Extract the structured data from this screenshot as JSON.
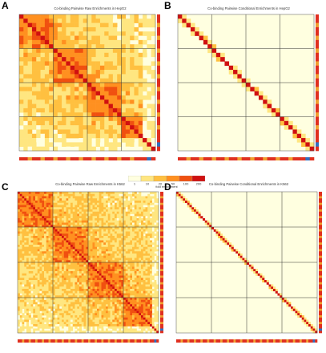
{
  "panels": [
    {
      "id": "panel-a",
      "label": "A",
      "title": "Co-binding Pairwise Raw Enrichments in HepG2",
      "type": "raw"
    },
    {
      "id": "panel-b",
      "label": "B",
      "title": "Co-binding Pairwise Conditional Enrichments in HepG2",
      "type": "conditional"
    },
    {
      "id": "panel-c",
      "label": "C",
      "title": "Co-binding Pairwise Raw Enrichments in K562",
      "type": "raw"
    },
    {
      "id": "panel-d",
      "label": "D",
      "title": "Co-binding Pairwise Conditional Enrichments in K562",
      "type": "conditional"
    }
  ],
  "legend": {
    "caption": "fold enrichment",
    "ticks": [
      "1",
      "10",
      "20",
      "50",
      "100",
      "200"
    ],
    "colors": [
      "#ffffe0",
      "#ffe680",
      "#ffc040",
      "#ff9020",
      "#f05010",
      "#d01010"
    ]
  },
  "chart_data": [
    {
      "type": "heatmap",
      "title": "Co-binding Pairwise Raw Enrichments in HepG2",
      "n_factors": 32,
      "value": "fold enrichment",
      "diagonal": "max"
    },
    {
      "type": "heatmap",
      "title": "Co-binding Pairwise Conditional Enrichments in HepG2",
      "n_factors": 32,
      "value": "fold enrichment",
      "diagonal": "max"
    },
    {
      "type": "heatmap",
      "title": "Co-binding Pairwise Raw Enrichments in K562",
      "n_factors": 64,
      "value": "fold enrichment",
      "diagonal": "max"
    },
    {
      "type": "heatmap",
      "title": "Co-binding Pairwise Conditional Enrichments in K562",
      "n_factors": 64,
      "value": "fold enrichment",
      "diagonal": "max"
    }
  ]
}
